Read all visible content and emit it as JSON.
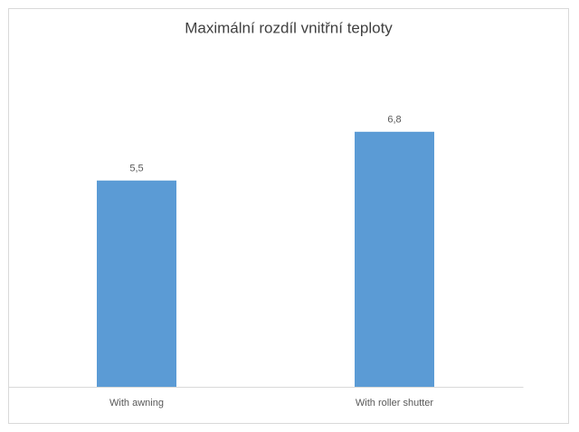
{
  "chart_data": {
    "type": "bar",
    "title": "Maximální rozdíl vnitřní teploty",
    "categories": [
      "With awning",
      "With roller shutter"
    ],
    "values": [
      5.5,
      6.8
    ],
    "value_labels": [
      "5,5",
      "6,8"
    ],
    "color": "#5b9bd5",
    "ylim": [
      0,
      8
    ]
  }
}
